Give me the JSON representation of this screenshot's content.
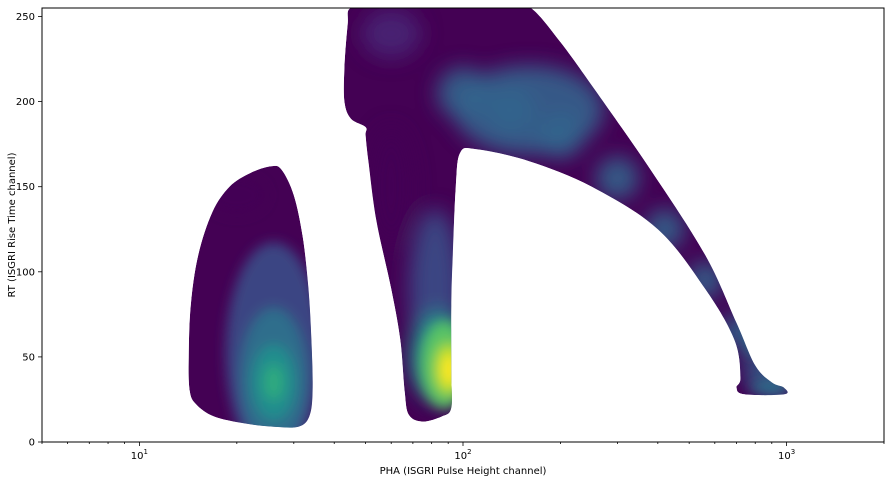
{
  "chart_data": {
    "type": "heatmap",
    "title": "",
    "xlabel": "PHA (ISGRI Pulse Height channel)",
    "ylabel": "RT (ISGRI Rise Time channel)",
    "xscale": "log",
    "xlim": [
      5,
      2000
    ],
    "ylim": [
      0,
      255
    ],
    "x_major_ticks": [
      {
        "value": 10,
        "base": "10",
        "exp": "1"
      },
      {
        "value": 100,
        "base": "10",
        "exp": "2"
      },
      {
        "value": 1000,
        "base": "10",
        "exp": "3"
      }
    ],
    "y_ticks": [
      0,
      50,
      100,
      150,
      200,
      250
    ],
    "y_tick_labels": [
      "0",
      "50",
      "100",
      "150",
      "200",
      "250"
    ],
    "grid": false,
    "colormap": "viridis",
    "colors": {
      "low": "#440154",
      "mid": "#31688e",
      "high": "#fde725"
    },
    "regions": [
      {
        "name": "low-energy-lobe",
        "outline": [
          [
            14.3,
            30
          ],
          [
            14.2,
            50
          ],
          [
            14.4,
            80
          ],
          [
            15.2,
            110
          ],
          [
            16.8,
            135
          ],
          [
            19,
            150
          ],
          [
            22,
            158
          ],
          [
            25.5,
            162
          ],
          [
            27.5,
            160
          ],
          [
            30,
            145
          ],
          [
            32,
            120
          ],
          [
            33.3,
            90
          ],
          [
            34,
            60
          ],
          [
            34.3,
            30
          ],
          [
            33.5,
            15
          ],
          [
            31,
            9
          ],
          [
            26,
            9
          ],
          [
            21,
            11
          ],
          [
            17,
            15
          ],
          [
            15,
            22
          ]
        ],
        "peak": [
          26,
          35
        ],
        "peak_level": 0.45
      },
      {
        "name": "main-branch",
        "outline": [
          [
            55,
            255
          ],
          [
            140,
            255
          ],
          [
            162,
            255
          ],
          [
            200,
            235
          ],
          [
            260,
            205
          ],
          [
            380,
            160
          ],
          [
            560,
            110
          ],
          [
            700,
            70
          ],
          [
            800,
            45
          ],
          [
            900,
            35
          ],
          [
            980,
            32
          ],
          [
            985,
            28
          ],
          [
            740,
            28
          ],
          [
            700,
            32
          ],
          [
            720,
            38
          ],
          [
            690,
            60
          ],
          [
            560,
            90
          ],
          [
            400,
            125
          ],
          [
            250,
            150
          ],
          [
            160,
            165
          ],
          [
            110,
            172
          ],
          [
            98,
            170
          ],
          [
            95,
            150
          ],
          [
            93,
            110
          ],
          [
            92,
            80
          ],
          [
            92,
            40
          ],
          [
            92,
            20
          ],
          [
            86,
            15
          ],
          [
            75,
            12
          ],
          [
            68,
            16
          ],
          [
            66,
            30
          ],
          [
            64,
            60
          ],
          [
            60,
            90
          ],
          [
            54,
            130
          ],
          [
            51,
            165
          ],
          [
            50,
            180
          ],
          [
            50,
            185
          ],
          [
            45,
            190
          ],
          [
            43,
            200
          ],
          [
            43,
            220
          ],
          [
            44,
            245
          ],
          [
            45,
            255
          ]
        ],
        "peaks": [
          {
            "at": [
              90,
              43
            ],
            "level": 1.0,
            "label": "yellow-core"
          },
          {
            "at": [
              150,
              190
            ],
            "level": 0.38,
            "label": "upper-branch"
          },
          {
            "at": [
              880,
              32
            ],
            "level": 0.32,
            "label": "high-energy-tip"
          }
        ]
      }
    ]
  }
}
